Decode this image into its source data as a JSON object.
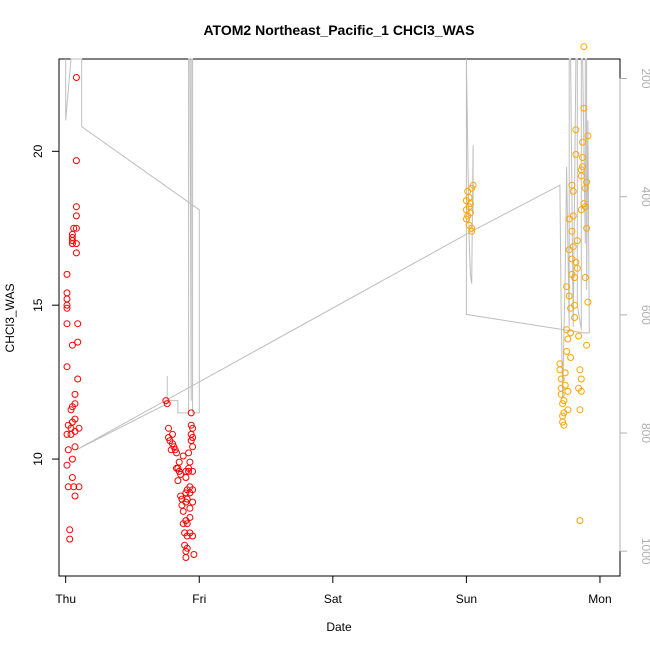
{
  "chart_data": {
    "type": "scatter",
    "title": "ATOM2 Northeast_Pacific_1 CHCl3_WAS",
    "xlabel": "Date",
    "ylabel": "CHCl3_WAS",
    "x_ticks": [
      "Thu",
      "Fri",
      "Sat",
      "Sun",
      "Mon"
    ],
    "xlim": [
      -0.05,
      4.15
    ],
    "ylim": [
      6.2,
      23.0
    ],
    "y_ticks": [
      10,
      15,
      20
    ],
    "y2_label": "",
    "y2_ticks": [
      200,
      400,
      600,
      800,
      1000
    ],
    "y2lim": [
      1042,
      167
    ],
    "grid": false,
    "colors": {
      "early_points": "#ff0000",
      "late_points": "#ffa500",
      "track_line": "#bebebe",
      "right_axis": "#b0b0b0"
    },
    "series": [
      {
        "color": "#ff0000",
        "points": [
          [
            0.01,
            16.0
          ],
          [
            0.01,
            15.4
          ],
          [
            0.01,
            15.2
          ],
          [
            0.01,
            15.0
          ],
          [
            0.01,
            14.9
          ],
          [
            0.01,
            14.4
          ],
          [
            0.01,
            13.0
          ],
          [
            0.01,
            10.8
          ],
          [
            0.01,
            9.8
          ],
          [
            0.02,
            11.1
          ],
          [
            0.02,
            10.3
          ],
          [
            0.02,
            9.1
          ],
          [
            0.03,
            7.7
          ],
          [
            0.03,
            7.4
          ],
          [
            0.04,
            11.0
          ],
          [
            0.04,
            10.8
          ],
          [
            0.04,
            11.6
          ],
          [
            0.05,
            13.7
          ],
          [
            0.05,
            11.7
          ],
          [
            0.05,
            11.2
          ],
          [
            0.05,
            10.0
          ],
          [
            0.05,
            9.4
          ],
          [
            0.05,
            17.0
          ],
          [
            0.05,
            17.1
          ],
          [
            0.05,
            17.2
          ],
          [
            0.05,
            17.3
          ],
          [
            0.06,
            17.5
          ],
          [
            0.06,
            9.1
          ],
          [
            0.07,
            8.8
          ],
          [
            0.07,
            12.1
          ],
          [
            0.07,
            11.8
          ],
          [
            0.07,
            11.3
          ],
          [
            0.07,
            10.9
          ],
          [
            0.07,
            10.4
          ],
          [
            0.08,
            16.7
          ],
          [
            0.08,
            17.9
          ],
          [
            0.08,
            18.2
          ],
          [
            0.08,
            17.5
          ],
          [
            0.08,
            17.0
          ],
          [
            0.08,
            19.7
          ],
          [
            0.08,
            22.4
          ],
          [
            0.09,
            14.4
          ],
          [
            0.09,
            13.8
          ],
          [
            0.09,
            12.6
          ],
          [
            0.1,
            11.0
          ],
          [
            0.1,
            9.1
          ],
          [
            0.75,
            11.9
          ],
          [
            0.76,
            11.8
          ],
          [
            0.77,
            11.0
          ],
          [
            0.77,
            10.7
          ],
          [
            0.78,
            10.6
          ],
          [
            0.79,
            10.3
          ],
          [
            0.8,
            10.8
          ],
          [
            0.8,
            10.5
          ],
          [
            0.81,
            10.4
          ],
          [
            0.82,
            10.3
          ],
          [
            0.83,
            10.2
          ],
          [
            0.83,
            9.7
          ],
          [
            0.84,
            9.7
          ],
          [
            0.84,
            9.3
          ],
          [
            0.85,
            9.9
          ],
          [
            0.85,
            9.6
          ],
          [
            0.86,
            9.5
          ],
          [
            0.86,
            8.8
          ],
          [
            0.87,
            8.5
          ],
          [
            0.87,
            8.7
          ],
          [
            0.88,
            10.1
          ],
          [
            0.88,
            8.3
          ],
          [
            0.88,
            7.9
          ],
          [
            0.89,
            7.6
          ],
          [
            0.89,
            7.2
          ],
          [
            0.9,
            8.0
          ],
          [
            0.9,
            8.6
          ],
          [
            0.9,
            8.9
          ],
          [
            0.9,
            9.4
          ],
          [
            0.9,
            9.6
          ],
          [
            0.9,
            7.0
          ],
          [
            0.9,
            6.8
          ],
          [
            0.91,
            7.1
          ],
          [
            0.91,
            7.5
          ],
          [
            0.91,
            7.9
          ],
          [
            0.91,
            8.7
          ],
          [
            0.91,
            9.0
          ],
          [
            0.92,
            9.6
          ],
          [
            0.92,
            9.7
          ],
          [
            0.92,
            10.2
          ],
          [
            0.93,
            7.6
          ],
          [
            0.93,
            8.1
          ],
          [
            0.93,
            8.4
          ],
          [
            0.93,
            8.9
          ],
          [
            0.93,
            9.1
          ],
          [
            0.93,
            9.9
          ],
          [
            0.94,
            10.6
          ],
          [
            0.94,
            10.8
          ],
          [
            0.94,
            11.1
          ],
          [
            0.94,
            11.5
          ],
          [
            0.95,
            10.4
          ],
          [
            0.95,
            10.7
          ],
          [
            0.95,
            11.0
          ],
          [
            0.95,
            9.6
          ],
          [
            0.95,
            9.0
          ],
          [
            0.95,
            8.6
          ],
          [
            0.95,
            7.5
          ],
          [
            0.96,
            6.9
          ]
        ]
      },
      {
        "color": "#ffa500",
        "points": [
          [
            3.0,
            17.8
          ],
          [
            3.0,
            18.1
          ],
          [
            3.0,
            18.4
          ],
          [
            3.01,
            18.7
          ],
          [
            3.01,
            17.9
          ],
          [
            3.02,
            18.2
          ],
          [
            3.02,
            18.5
          ],
          [
            3.02,
            17.6
          ],
          [
            3.03,
            18.0
          ],
          [
            3.03,
            18.3
          ],
          [
            3.04,
            17.5
          ],
          [
            3.04,
            17.4
          ],
          [
            3.04,
            18.8
          ],
          [
            3.05,
            18.9
          ],
          [
            3.7,
            13.1
          ],
          [
            3.7,
            12.9
          ],
          [
            3.71,
            12.6
          ],
          [
            3.71,
            12.3
          ],
          [
            3.71,
            12.1
          ],
          [
            3.72,
            11.8
          ],
          [
            3.72,
            11.4
          ],
          [
            3.72,
            11.2
          ],
          [
            3.73,
            11.1
          ],
          [
            3.73,
            11.5
          ],
          [
            3.73,
            11.9
          ],
          [
            3.74,
            12.4
          ],
          [
            3.74,
            12.8
          ],
          [
            3.75,
            13.5
          ],
          [
            3.75,
            14.2
          ],
          [
            3.75,
            15.6
          ],
          [
            3.76,
            13.9
          ],
          [
            3.76,
            12.2
          ],
          [
            3.76,
            11.6
          ],
          [
            3.77,
            16.8
          ],
          [
            3.77,
            17.8
          ],
          [
            3.77,
            15.3
          ],
          [
            3.78,
            14.9
          ],
          [
            3.78,
            14.1
          ],
          [
            3.78,
            13.3
          ],
          [
            3.79,
            16.0
          ],
          [
            3.79,
            16.5
          ],
          [
            3.79,
            17.4
          ],
          [
            3.79,
            18.9
          ],
          [
            3.8,
            18.7
          ],
          [
            3.8,
            17.9
          ],
          [
            3.8,
            16.9
          ],
          [
            3.81,
            15.9
          ],
          [
            3.81,
            15.0
          ],
          [
            3.81,
            14.6
          ],
          [
            3.82,
            16.4
          ],
          [
            3.82,
            19.9
          ],
          [
            3.82,
            20.7
          ],
          [
            3.83,
            17.1
          ],
          [
            3.83,
            16.2
          ],
          [
            3.84,
            14.0
          ],
          [
            3.84,
            12.3
          ],
          [
            3.85,
            8.0
          ],
          [
            3.85,
            11.6
          ],
          [
            3.85,
            12.9
          ],
          [
            3.86,
            12.2
          ],
          [
            3.86,
            12.6
          ],
          [
            3.86,
            18.1
          ],
          [
            3.86,
            19.2
          ],
          [
            3.86,
            19.4
          ],
          [
            3.87,
            19.5
          ],
          [
            3.87,
            19.8
          ],
          [
            3.87,
            20.3
          ],
          [
            3.88,
            18.3
          ],
          [
            3.88,
            21.4
          ],
          [
            3.88,
            23.4
          ],
          [
            3.89,
            18.8
          ],
          [
            3.89,
            15.9
          ],
          [
            3.89,
            18.2
          ],
          [
            3.9,
            13.7
          ],
          [
            3.9,
            17.5
          ],
          [
            3.9,
            19.0
          ],
          [
            3.91,
            20.5
          ],
          [
            3.91,
            15.1
          ]
        ]
      }
    ],
    "track": [
      [
        0.0,
        23.0
      ],
      [
        0.0,
        21.0
      ],
      [
        0.04,
        23.0
      ],
      [
        0.06,
        23.0
      ],
      [
        0.08,
        23.0
      ],
      [
        0.1,
        23.0
      ],
      [
        0.11,
        23.0
      ],
      [
        0.12,
        23.0
      ],
      [
        0.12,
        20.8
      ],
      [
        1.0,
        18.1
      ],
      [
        1.0,
        11.5
      ],
      [
        0.95,
        11.5
      ],
      [
        0.95,
        23.0
      ],
      [
        0.94,
        23.0
      ],
      [
        0.94,
        11.9
      ],
      [
        0.93,
        23.0
      ],
      [
        0.92,
        23.0
      ],
      [
        0.92,
        11.5
      ],
      [
        0.84,
        11.5
      ],
      [
        0.84,
        11.9
      ],
      [
        0.76,
        11.9
      ],
      [
        0.76,
        12.7
      ],
      [
        0.76,
        11.8
      ],
      [
        0.08,
        10.3
      ],
      [
        3.04,
        17.4
      ],
      [
        3.7,
        18.9
      ],
      [
        3.71,
        14.7
      ],
      [
        3.72,
        12.0
      ],
      [
        3.73,
        14.0
      ],
      [
        3.74,
        16.0
      ],
      [
        3.75,
        19.5
      ],
      [
        3.77,
        14.3
      ],
      [
        3.77,
        23.0
      ],
      [
        3.78,
        23.0
      ],
      [
        3.8,
        14.3
      ],
      [
        3.82,
        23.0
      ],
      [
        3.83,
        23.0
      ],
      [
        3.83,
        15.0
      ],
      [
        3.86,
        14.2
      ],
      [
        3.86,
        23.0
      ],
      [
        3.87,
        23.0
      ],
      [
        3.89,
        17.0
      ],
      [
        3.89,
        23.0
      ],
      [
        3.9,
        23.0
      ],
      [
        3.9,
        15.5
      ],
      [
        3.91,
        21.0
      ],
      [
        3.92,
        14.1
      ],
      [
        3.88,
        14.1
      ],
      [
        3.0,
        14.7
      ],
      [
        3.0,
        16.0
      ],
      [
        3.0,
        23.0
      ],
      [
        3.0,
        23.0
      ],
      [
        3.02,
        17.2
      ],
      [
        3.03,
        16.0
      ],
      [
        3.04,
        15.7
      ],
      [
        3.05,
        20.2
      ],
      [
        3.05,
        18.0
      ]
    ]
  }
}
